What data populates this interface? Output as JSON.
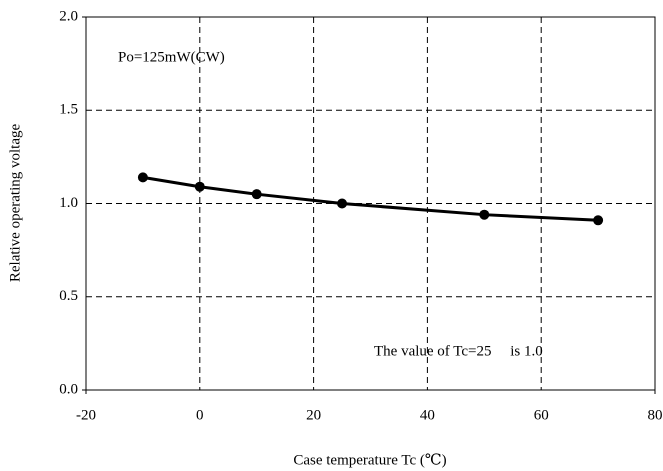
{
  "chart_data": {
    "type": "line",
    "x_label": "Case temperature Tc (℃)",
    "y_label": "Relative operating voltage",
    "annotations": [
      "Po=125mW(CW)",
      "The value of Tc=25     is 1.0"
    ],
    "x": [
      -10,
      0,
      10,
      25,
      50,
      70
    ],
    "series": [
      {
        "color": "#000000",
        "values": [
          1.14,
          1.09,
          1.05,
          1.0,
          0.94,
          0.91
        ]
      }
    ],
    "xlim": [
      -20,
      80
    ],
    "xticks": [
      -20,
      0,
      20,
      40,
      60,
      80
    ],
    "ylim": [
      0,
      2
    ],
    "yticks": [
      {
        "value": 0,
        "label": "0.0"
      },
      {
        "value": 0.5,
        "label": "0.5"
      },
      {
        "value": 1,
        "label": "1.0"
      },
      {
        "value": 1.5,
        "label": "1.5"
      },
      {
        "value": 2,
        "label": "2.0"
      }
    ],
    "grid": true
  }
}
